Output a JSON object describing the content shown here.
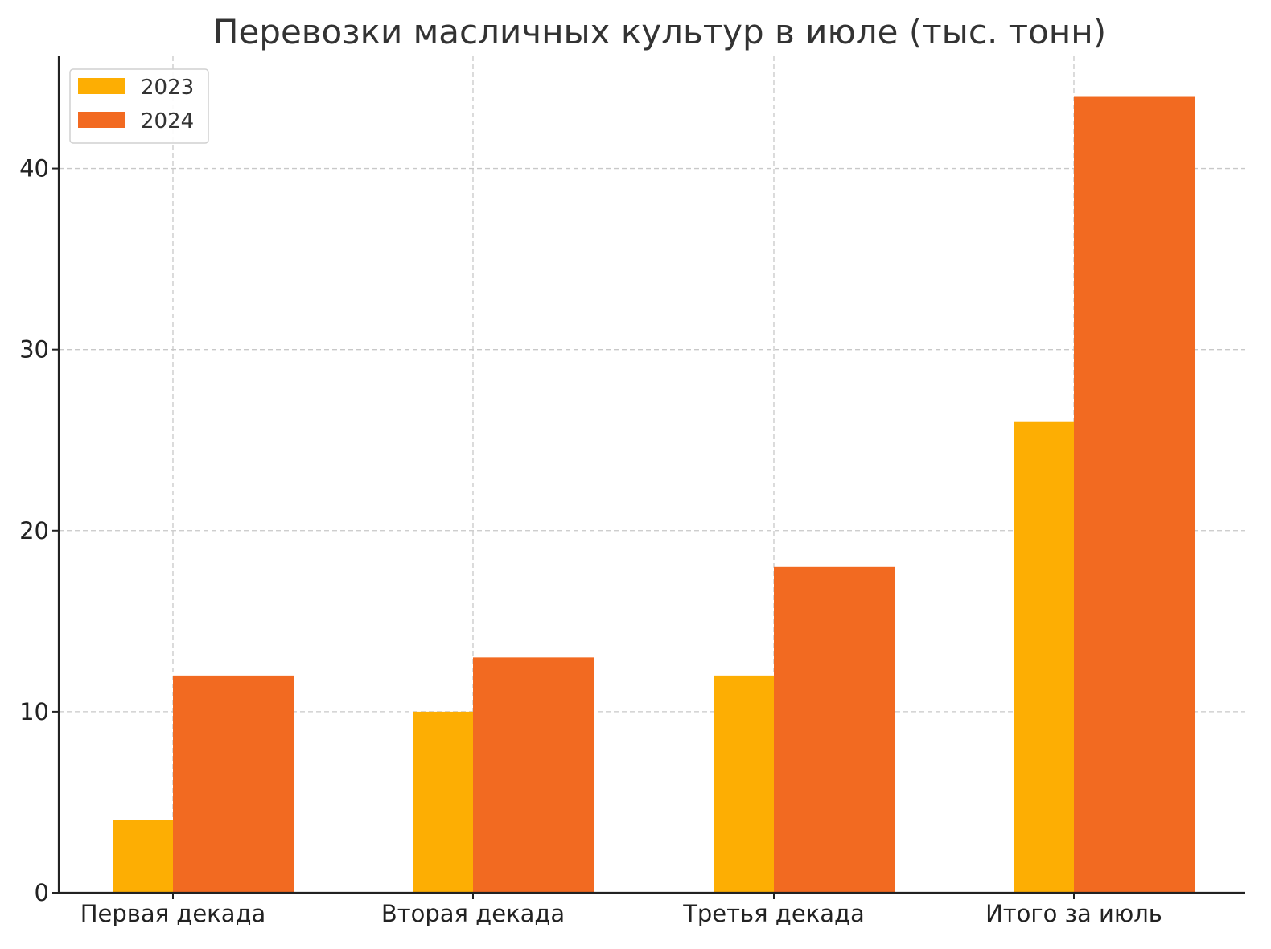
{
  "chart_data": {
    "type": "bar",
    "title": "Перевозки масличных культур в июле (тыс. тонн)",
    "xlabel": "",
    "ylabel": "",
    "categories": [
      "Первая декада",
      "Вторая декада",
      "Третья декада",
      "Итого за июль"
    ],
    "series": [
      {
        "name": "2023",
        "values": [
          4,
          10,
          12,
          26
        ],
        "color": "#FDAE03"
      },
      {
        "name": "2024",
        "values": [
          12,
          13,
          18,
          44
        ],
        "color": "#F26A21"
      }
    ],
    "ylim": [
      0,
      46.2
    ],
    "yticks": [
      0,
      10,
      20,
      30,
      40
    ],
    "grid": true,
    "legend_position": "top-left"
  }
}
